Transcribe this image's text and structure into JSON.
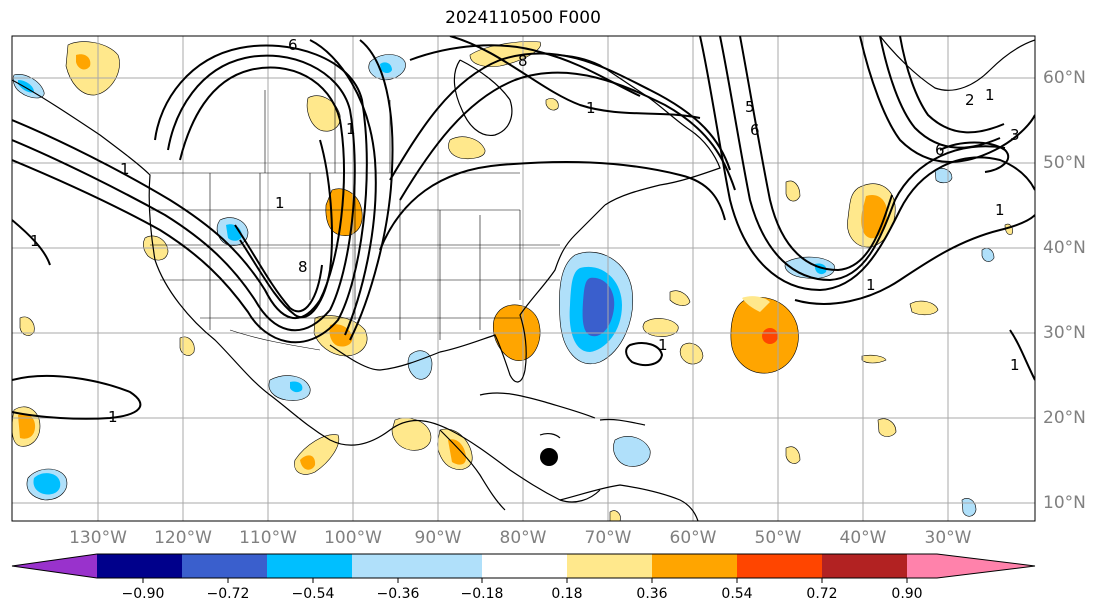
{
  "title": "2024110500 F000",
  "lon_labels": [
    "130°W",
    "120°W",
    "110°W",
    "100°W",
    "90°W",
    "80°W",
    "70°W",
    "60°W",
    "50°W",
    "40°W",
    "30°W"
  ],
  "lat_labels": [
    "60°N",
    "50°N",
    "40°N",
    "30°N",
    "20°N",
    "10°N"
  ],
  "colorbar": {
    "ticks": [
      "−0.90",
      "−0.72",
      "−0.54",
      "−0.36",
      "−0.18",
      "0.18",
      "0.36",
      "0.54",
      "0.72",
      "0.90"
    ],
    "colors": [
      "#9932cc",
      "#00008b",
      "#3a5fcd",
      "#00bfff",
      "#b0e0fa",
      "#ffffff",
      "#ffe88c",
      "#ffa500",
      "#ff4500",
      "#b22222",
      "#ff82ab"
    ]
  },
  "contour_labels": [
    "6",
    "1",
    "1",
    "5",
    "6",
    "1",
    "2",
    "1",
    "3",
    "6",
    "1",
    "1",
    "1",
    "1",
    "1",
    "1",
    "8",
    "8",
    "1"
  ],
  "storm_marker": "black-dot"
}
